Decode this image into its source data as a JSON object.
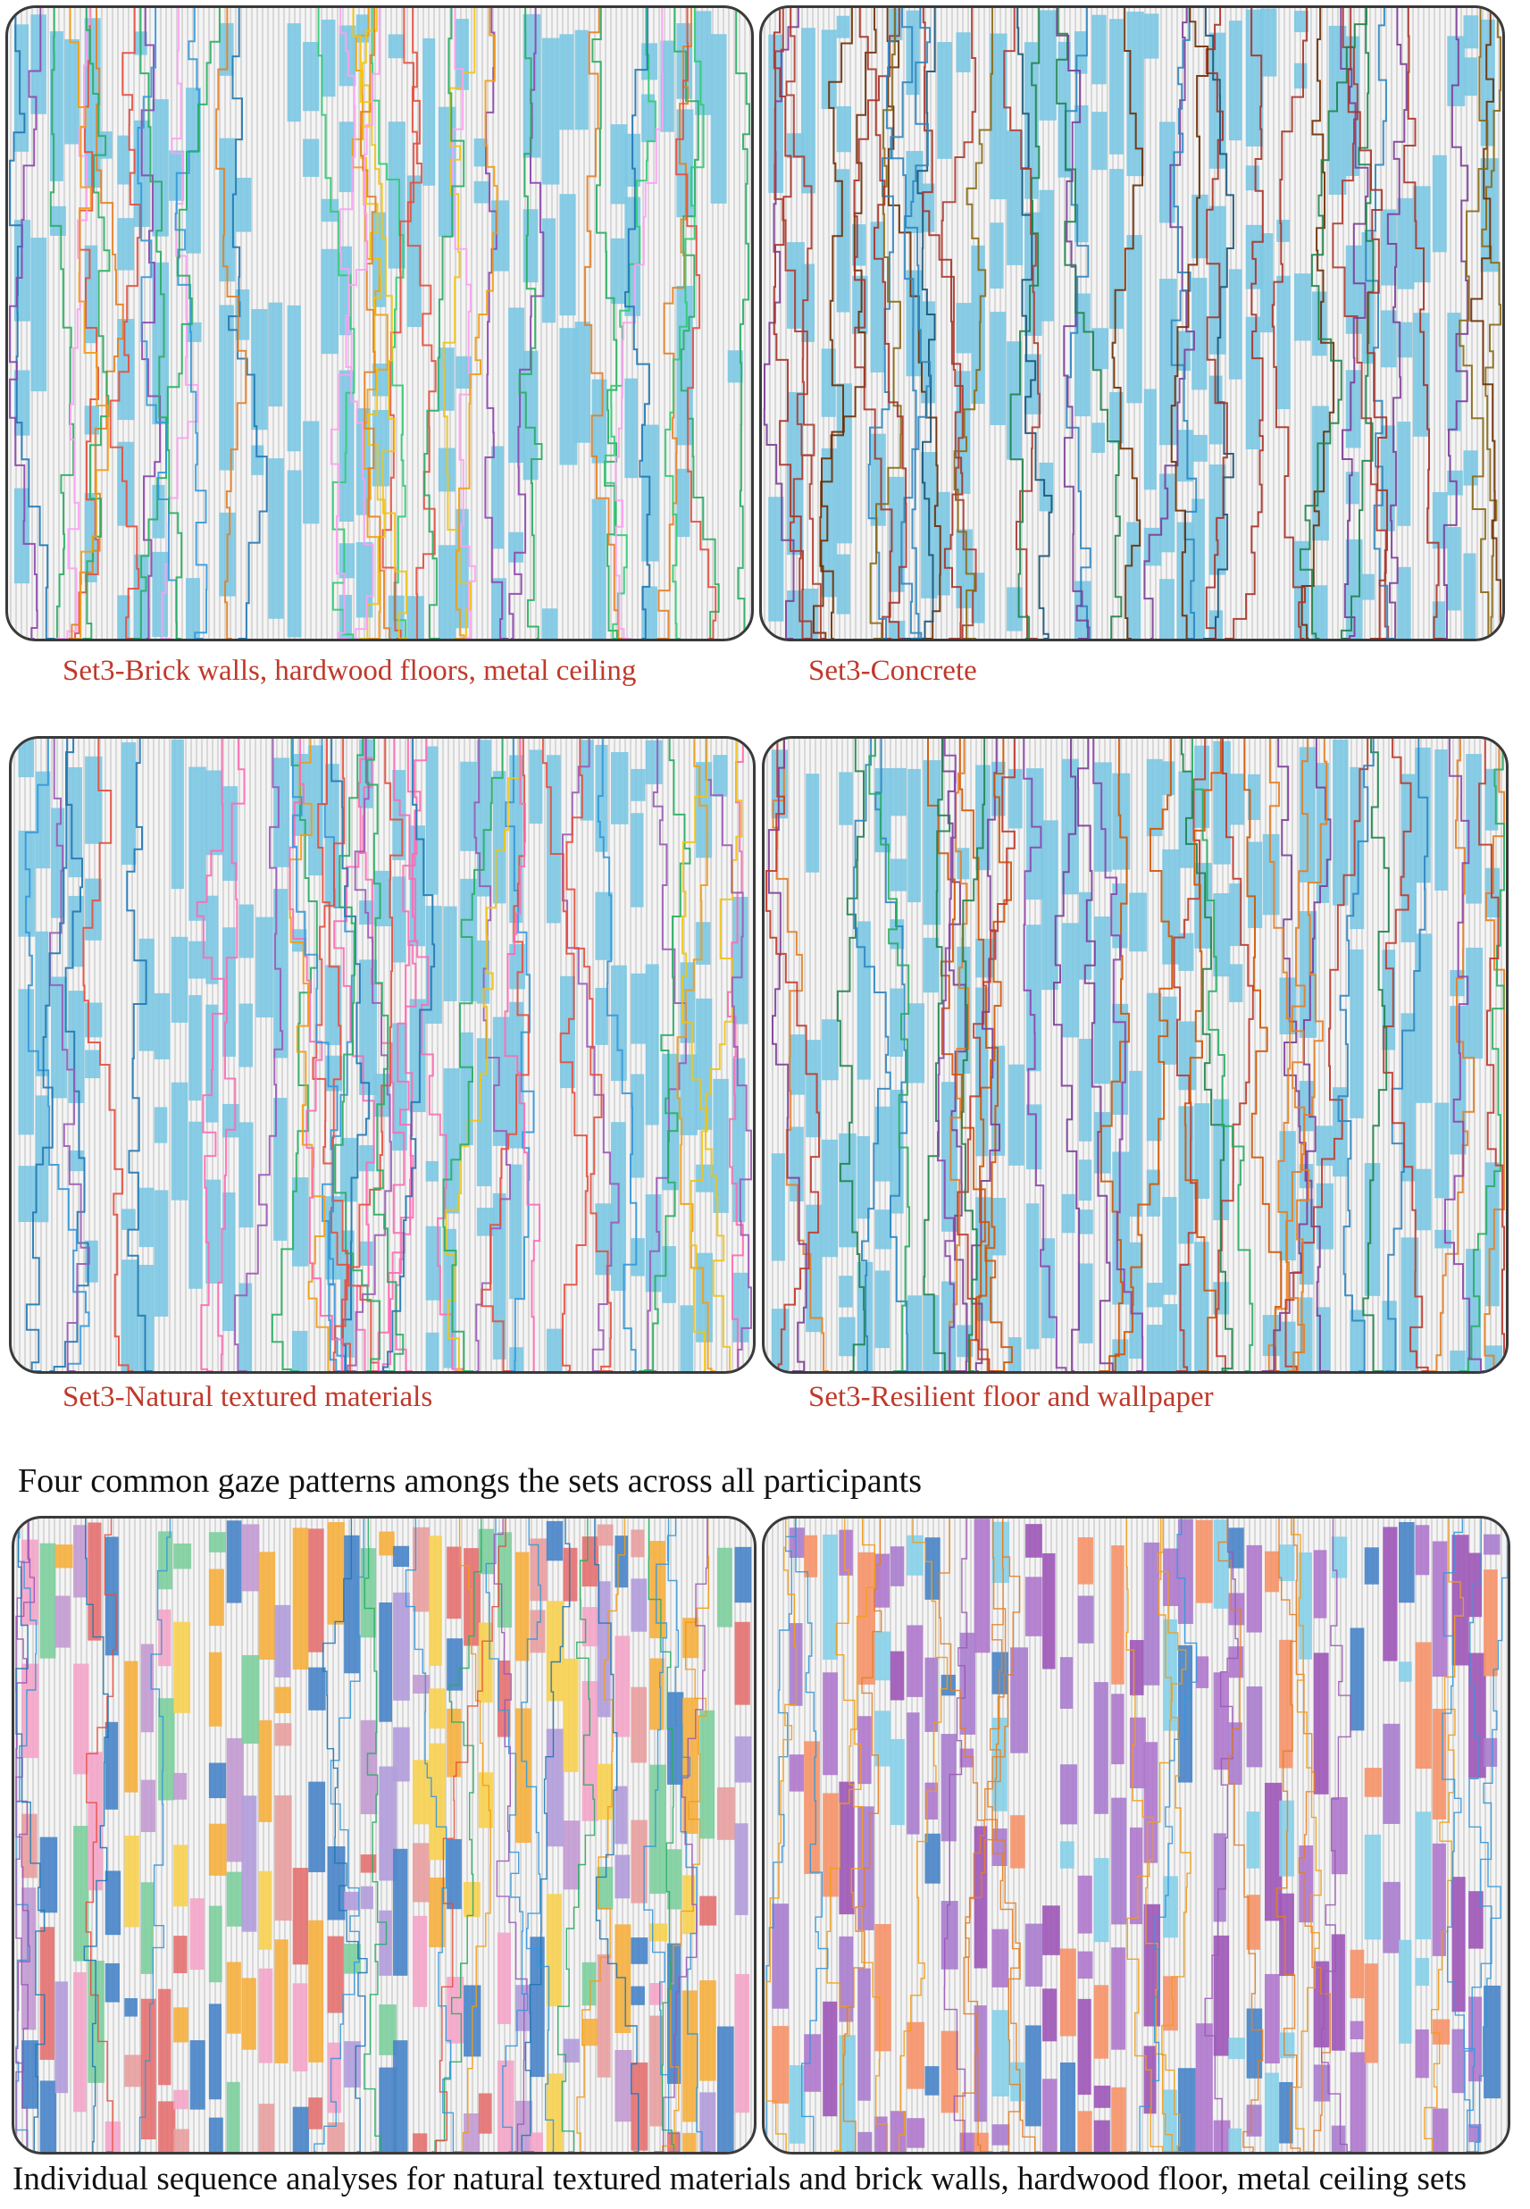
{
  "panels": [
    {
      "id": "brick",
      "caption": "Set3-Brick walls, hardwood floors, metal ceiling",
      "palette": [
        "#e74c3c",
        "#f39c12",
        "#27ae60",
        "#8e44ad",
        "#1f77b4",
        "#ff9ff3",
        "#e67e22",
        "#2ecc71",
        "#f1c40f",
        "#3498db"
      ],
      "fill_palette": [
        "#7ec8e3"
      ]
    },
    {
      "id": "concrete",
      "caption": "Set3-Concrete",
      "palette": [
        "#b03a2e",
        "#7d3c98",
        "#1e8449",
        "#8b6914",
        "#2e86c1",
        "#a93226",
        "#1a5276",
        "#6e2c00"
      ],
      "fill_palette": [
        "#7ec8e3"
      ]
    },
    {
      "id": "natural",
      "caption": "Set3-Natural textured materials",
      "palette": [
        "#e74c3c",
        "#9b59b6",
        "#f39c12",
        "#27ae60",
        "#3498db",
        "#ff69b4",
        "#f1c40f",
        "#1f77b4"
      ],
      "fill_palette": [
        "#7ec8e3"
      ]
    },
    {
      "id": "resilient",
      "caption": "Set3-Resilient floor and wallpaper",
      "palette": [
        "#c0392b",
        "#8e44ad",
        "#27ae60",
        "#2e86c1",
        "#e67e22",
        "#7d3c98",
        "#1e8449",
        "#d35400"
      ],
      "fill_palette": [
        "#7ec8e3"
      ]
    },
    {
      "id": "individual-natural",
      "caption": "",
      "palette": [
        "#e74c3c",
        "#27ae60",
        "#3498db",
        "#9b59b6",
        "#f39c12",
        "#1f77b4"
      ],
      "fill_palette": [
        "#f4a6c9",
        "#f7d154",
        "#4a86c8",
        "#7fcf9f",
        "#e8a0a0",
        "#b39ddb",
        "#f5b041",
        "#c39bd3",
        "#e57373"
      ]
    },
    {
      "id": "individual-brick",
      "caption": "",
      "palette": [
        "#f39c12",
        "#3498db",
        "#9b59b6",
        "#e67e22"
      ],
      "fill_palette": [
        "#9e59b8",
        "#b07acc",
        "#89d0e8",
        "#f5956b",
        "#4a86c8",
        "#a97fce"
      ]
    }
  ],
  "section_titles": {
    "patterns": "Four common gaze patterns amongs the sets across all participants",
    "individual": "Individual sequence analyses for natural textured materials and brick walls, hardwood floor, metal ceiling sets"
  }
}
